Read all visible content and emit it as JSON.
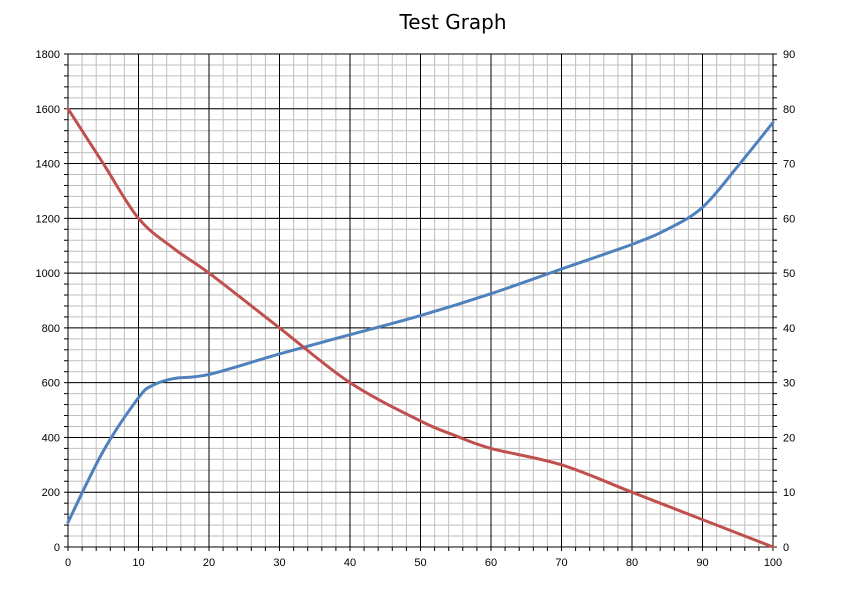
{
  "chart_data": {
    "type": "line",
    "title": "Test Graph",
    "xlabel": "",
    "ylabel": "",
    "y2label": "",
    "xlim": [
      0,
      100
    ],
    "ylim": [
      0,
      1800
    ],
    "y2lim": [
      0,
      90
    ],
    "x_ticks": [
      0,
      10,
      20,
      30,
      40,
      50,
      60,
      70,
      80,
      90,
      100
    ],
    "y_ticks": [
      0,
      200,
      400,
      600,
      800,
      1000,
      1200,
      1400,
      1600,
      1800
    ],
    "y2_ticks": [
      0,
      10,
      20,
      30,
      40,
      50,
      60,
      70,
      80,
      90
    ],
    "grid": true,
    "legend": "none",
    "series": [
      {
        "axis": "left",
        "color": "#4F81BD",
        "x": [
          0,
          5,
          10,
          12,
          15,
          20,
          30,
          40,
          50,
          60,
          70,
          80,
          85,
          90,
          95,
          100
        ],
        "y": [
          90,
          350,
          545,
          590,
          615,
          630,
          705,
          775,
          845,
          925,
          1015,
          1105,
          1160,
          1240,
          1390,
          1550
        ]
      },
      {
        "axis": "right",
        "color": "#C0504D",
        "x": [
          0,
          5,
          10,
          15,
          20,
          30,
          40,
          50,
          55,
          60,
          70,
          80,
          90,
          100
        ],
        "y": [
          80,
          70,
          60,
          54.5,
          50,
          40,
          30,
          23,
          20.3,
          18,
          15,
          10,
          5,
          0
        ]
      }
    ]
  }
}
